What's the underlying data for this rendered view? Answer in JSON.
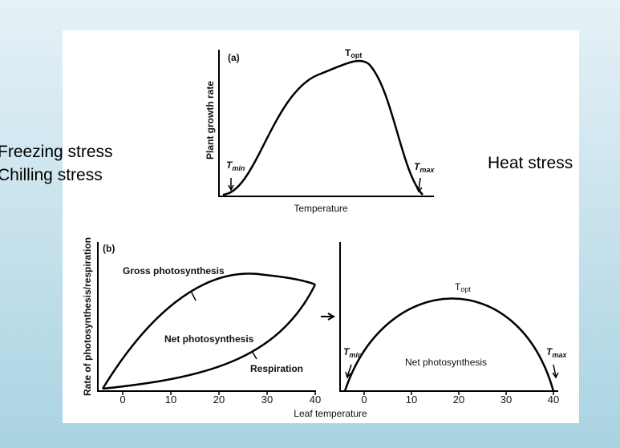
{
  "side_labels": {
    "freezing": "Freezing stress",
    "chilling": "Chilling stress",
    "heat": "Heat stress"
  },
  "panel_a": {
    "label": "(a)",
    "y_axis": "Plant growth rate",
    "x_axis": "Temperature",
    "t_opt": {
      "main": "T",
      "sub": "opt"
    },
    "t_min": {
      "main": "T",
      "sub": "min"
    },
    "t_max": {
      "main": "T",
      "sub": "max"
    }
  },
  "panel_b": {
    "label": "(b)",
    "y_axis": "Rate of photosynthesis/respiration",
    "x_axis": "Leaf temperature",
    "gross": "Gross photosynthesis",
    "net": "Net photosynthesis",
    "respiration": "Respiration",
    "left_ticks": [
      0,
      10,
      20,
      30,
      40
    ],
    "right_ticks": [
      0,
      10,
      20,
      30,
      40
    ],
    "right_net": "Net  photosynthesis",
    "t_opt": {
      "main": "T",
      "sub": "opt"
    },
    "t_min": {
      "main": "T",
      "sub": "min"
    },
    "t_max": {
      "main": "T",
      "sub": "max"
    }
  }
}
